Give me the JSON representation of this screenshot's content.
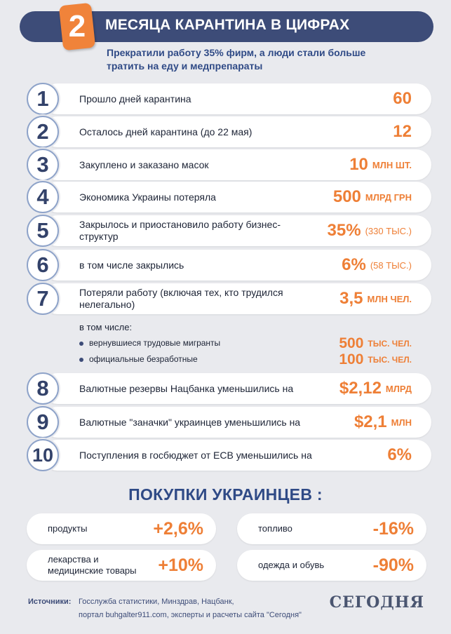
{
  "header": {
    "badge": "2",
    "title": "МЕСЯЦА КАРАНТИНА В ЦИФРАХ",
    "subtitle": "Прекратили работу 35% фирм, а люди стали больше тратить на еду и медпрепараты"
  },
  "colors": {
    "accent": "#ee7f36",
    "navy": "#3d4c78",
    "background": "#e9eaee"
  },
  "stats": [
    {
      "num": "1",
      "label": "Прошло дней карантина",
      "value": "60",
      "unit": ""
    },
    {
      "num": "2",
      "label": "Осталось дней карантина (до 22 мая)",
      "value": "12",
      "unit": ""
    },
    {
      "num": "3",
      "label": "Закуплено и заказано масок",
      "value": "10",
      "unit": "МЛН ШТ."
    },
    {
      "num": "4",
      "label": "Экономика Украины потеряла",
      "value": "500",
      "unit": "МЛРД ГРН"
    },
    {
      "num": "5",
      "label": "Закрылось и приостановило работу бизнес-структур",
      "value": "35%",
      "unit": "(330 ТЫС.)"
    },
    {
      "num": "6",
      "label": "в том числе закрылись",
      "value": "6%",
      "unit": "(58 ТЫС.)"
    },
    {
      "num": "7",
      "label": "Потеряли работу (включая тех, кто трудился нелегально)",
      "value": "3,5",
      "unit": "МЛН ЧЕЛ."
    },
    {
      "num": "8",
      "label": "Валютные резервы Нацбанка уменьшились на",
      "value": "$2,12",
      "unit": "МЛРД"
    },
    {
      "num": "9",
      "label": "Валютные \"заначки\" украинцев уменьшились на",
      "value": "$2,1",
      "unit": "МЛН"
    },
    {
      "num": "10",
      "label": "Поступления в госбюджет от ЕСВ уменьшились на",
      "value": "6%",
      "unit": ""
    }
  ],
  "sub": {
    "intro": "в том числе:",
    "items": [
      {
        "label": "вернувшиеся трудовые мигранты",
        "value": "500",
        "unit": "ТЫС. ЧЕЛ."
      },
      {
        "label": "официальные безработные",
        "value": "100",
        "unit": "ТЫС. ЧЕЛ."
      }
    ]
  },
  "purchases": {
    "title": "ПОКУПКИ УКРАИНЦЕВ :",
    "items": [
      {
        "label": "продукты",
        "value": "+2,6%"
      },
      {
        "label": "топливо",
        "value": "-16%"
      },
      {
        "label": "лекарства и медицинские товары",
        "value": "+10%"
      },
      {
        "label": "одежда и обувь",
        "value": "-90%"
      }
    ]
  },
  "footer": {
    "sources_label": "Источники:",
    "line1": "Госслужба статистики, Минздрав, Нацбанк,",
    "line2": "портал buhgalter911.com, эксперты и расчеты  сайта \"Сегодня\"",
    "logo": "СЕГОДНЯ"
  }
}
